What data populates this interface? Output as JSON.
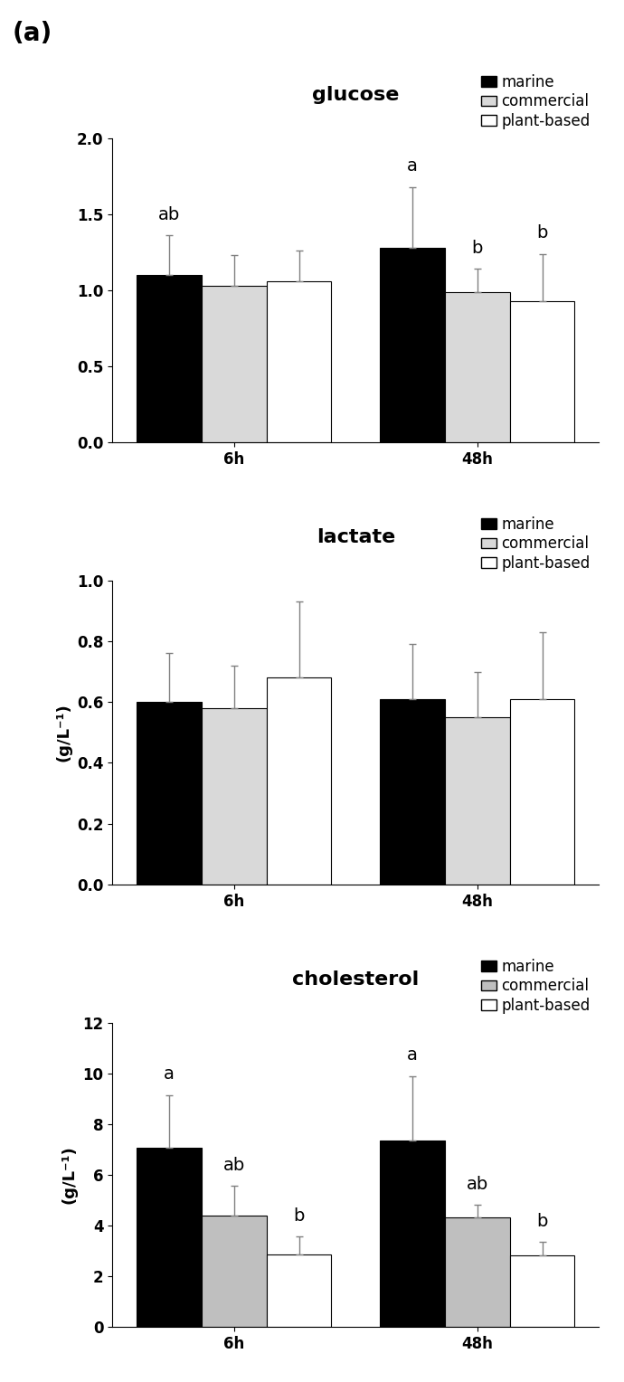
{
  "panel_label": "(a)",
  "chart_data": [
    {
      "type": "bar",
      "title": "glucose",
      "categories": [
        "6h",
        "48h"
      ],
      "ylim": [
        0,
        2.0
      ],
      "yticks": [
        {
          "value": 0,
          "label": "0.0"
        },
        {
          "value": 0.5,
          "label": "0.5"
        },
        {
          "value": 1.0,
          "label": "1.0"
        },
        {
          "value": 1.5,
          "label": "1.5"
        },
        {
          "value": 2.0,
          "label": "2.0"
        }
      ],
      "legend": "upper right",
      "series": [
        {
          "name": "marine",
          "color": "#000000",
          "values": [
            1.1,
            1.28
          ],
          "errors": [
            0.26,
            0.4
          ],
          "letters": [
            "ab",
            "a"
          ]
        },
        {
          "name": "commercial",
          "color": "#d9d9d9",
          "values": [
            1.03,
            0.99
          ],
          "errors": [
            0.2,
            0.15
          ],
          "letters": [
            null,
            "b"
          ]
        },
        {
          "name": "plant-based",
          "color": "#ffffff",
          "values": [
            1.06,
            0.93
          ],
          "errors": [
            0.2,
            0.31
          ],
          "letters": [
            null,
            "b"
          ]
        }
      ]
    },
    {
      "type": "bar",
      "title": "lactate",
      "y_label": "(g/L⁻¹)",
      "categories": [
        "6h",
        "48h"
      ],
      "ylim": [
        0,
        1.0
      ],
      "yticks": [
        {
          "value": 0,
          "label": "0.0"
        },
        {
          "value": 0.2,
          "label": "0.2"
        },
        {
          "value": 0.4,
          "label": "0.4"
        },
        {
          "value": 0.6,
          "label": "0.6"
        },
        {
          "value": 0.8,
          "label": "0.8"
        },
        {
          "value": 1.0,
          "label": "1.0"
        }
      ],
      "legend": "upper right",
      "series": [
        {
          "name": "marine",
          "color": "#000000",
          "values": [
            0.6,
            0.61
          ],
          "errors": [
            0.16,
            0.18
          ]
        },
        {
          "name": "commercial",
          "color": "#d9d9d9",
          "values": [
            0.58,
            0.55
          ],
          "errors": [
            0.14,
            0.15
          ]
        },
        {
          "name": "plant-based",
          "color": "#ffffff",
          "values": [
            0.68,
            0.61
          ],
          "errors": [
            0.25,
            0.22
          ]
        }
      ]
    },
    {
      "type": "bar",
      "title": "cholesterol",
      "y_label": "(g/L⁻¹)",
      "categories": [
        "6h",
        "48h"
      ],
      "ylim": [
        0,
        12
      ],
      "yticks": [
        0,
        2,
        4,
        6,
        8,
        10,
        12
      ],
      "legend": "upper right",
      "series": [
        {
          "name": "marine",
          "color": "#000000",
          "values": [
            7.05,
            7.35
          ],
          "errors": [
            2.1,
            2.55
          ],
          "letters": [
            "a",
            "a"
          ]
        },
        {
          "name": "commercial",
          "color": "#bfbfbf",
          "values": [
            4.4,
            4.3
          ],
          "errors": [
            1.15,
            0.5
          ],
          "letters": [
            "ab",
            "ab"
          ]
        },
        {
          "name": "plant-based",
          "color": "#ffffff",
          "values": [
            2.85,
            2.8
          ],
          "errors": [
            0.7,
            0.55
          ],
          "letters": [
            "b",
            "b"
          ]
        }
      ]
    }
  ]
}
